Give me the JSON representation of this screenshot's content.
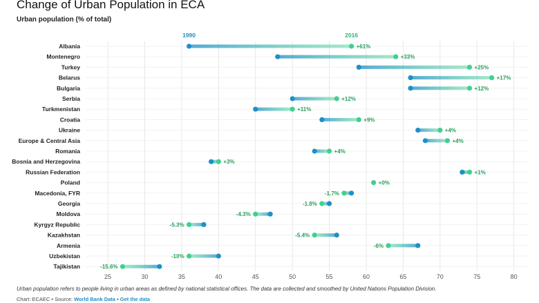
{
  "title": "Change of Urban Population in ECA",
  "subtitle": "Urban population (% of total)",
  "note": "Urban population refers to people living in urban areas as defined by national statistical offices. The data are collected and smoothed by United Nations Population Division.",
  "source": {
    "prefix": "Chart: ECAEC • Source: ",
    "data_link": "World Bank Data",
    "separator": " • ",
    "get_link": "Get the data"
  },
  "colors": {
    "start": "#1f8fc6",
    "end": "#3fd08f",
    "grid": "#e6e6e6",
    "label": "#2a9d5c"
  },
  "chart_data": {
    "type": "dumbbell",
    "title": "Change of Urban Population in ECA",
    "ylabel": "Urban population (% of total)",
    "xlim": [
      22,
      82
    ],
    "xticks": [
      25,
      30,
      35,
      40,
      45,
      50,
      55,
      60,
      65,
      70,
      75,
      80
    ],
    "series_labels": {
      "start": "1990",
      "end": "2016"
    },
    "rows": [
      {
        "name": "Albania",
        "start": 36,
        "end": 58,
        "change": "+61%"
      },
      {
        "name": "Montenegro",
        "start": 48,
        "end": 64,
        "change": "+33%"
      },
      {
        "name": "Turkey",
        "start": 59,
        "end": 74,
        "change": "+25%"
      },
      {
        "name": "Belarus",
        "start": 66,
        "end": 77,
        "change": "+17%"
      },
      {
        "name": "Bulgaria",
        "start": 66,
        "end": 74,
        "change": "+12%"
      },
      {
        "name": "Serbia",
        "start": 50,
        "end": 56,
        "change": "+12%"
      },
      {
        "name": "Turkmenistan",
        "start": 45,
        "end": 50,
        "change": "+11%"
      },
      {
        "name": "Croatia",
        "start": 54,
        "end": 59,
        "change": "+9%"
      },
      {
        "name": "Ukraine",
        "start": 67,
        "end": 70,
        "change": "+4%"
      },
      {
        "name": "Europe & Central Asia",
        "start": 68,
        "end": 71,
        "change": "+4%"
      },
      {
        "name": "Romania",
        "start": 53,
        "end": 55,
        "change": "+4%"
      },
      {
        "name": "Bosnia and Herzegovina",
        "start": 39,
        "end": 40,
        "change": "+3%"
      },
      {
        "name": "Russian Federation",
        "start": 73,
        "end": 74,
        "change": "+1%"
      },
      {
        "name": "Poland",
        "start": 61,
        "end": 61,
        "change": "+0%"
      },
      {
        "name": "Macedonia, FYR",
        "start": 58,
        "end": 57,
        "change": "-1.7%"
      },
      {
        "name": "Georgia",
        "start": 55,
        "end": 54,
        "change": "-1.8%"
      },
      {
        "name": "Moldova",
        "start": 47,
        "end": 45,
        "change": "-4.3%"
      },
      {
        "name": "Kyrgyz Republic",
        "start": 38,
        "end": 36,
        "change": "-5.3%"
      },
      {
        "name": "Kazakhstan",
        "start": 56,
        "end": 53,
        "change": "-5.4%"
      },
      {
        "name": "Armenia",
        "start": 67,
        "end": 63,
        "change": "-6%"
      },
      {
        "name": "Uzbekistan",
        "start": 40,
        "end": 36,
        "change": "-10%"
      },
      {
        "name": "Tajikistan",
        "start": 32,
        "end": 27,
        "change": "-15.6%"
      }
    ]
  }
}
